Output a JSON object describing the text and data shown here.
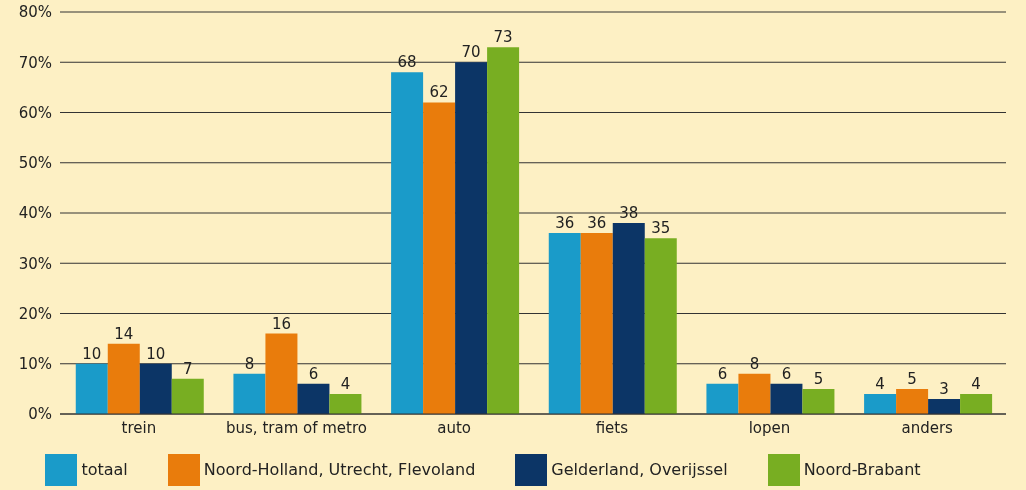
{
  "chart_data": {
    "type": "bar",
    "categories": [
      "trein",
      "bus, tram of metro",
      "auto",
      "fiets",
      "lopen",
      "anders"
    ],
    "series": [
      {
        "name": "totaal",
        "color": "#1a9bc9",
        "values": [
          10,
          8,
          68,
          36,
          6,
          4
        ]
      },
      {
        "name": "Noord-Holland, Utrecht, Flevoland",
        "color": "#e97c0c",
        "values": [
          14,
          16,
          62,
          36,
          8,
          5
        ]
      },
      {
        "name": "Gelderland, Overijssel",
        "color": "#0c3566",
        "values": [
          10,
          6,
          70,
          38,
          6,
          3
        ]
      },
      {
        "name": "Noord-Brabant",
        "color": "#78ae22",
        "values": [
          7,
          4,
          73,
          35,
          5,
          4
        ]
      }
    ],
    "ylim": [
      0,
      80
    ],
    "yticks": [
      {
        "value": 0,
        "label": "0%"
      },
      {
        "value": 10,
        "label": "10%"
      },
      {
        "value": 20,
        "label": "20%"
      },
      {
        "value": 30,
        "label": "30%"
      },
      {
        "value": 40,
        "label": "40%"
      },
      {
        "value": 50,
        "label": "50%"
      },
      {
        "value": 60,
        "label": "60%"
      },
      {
        "value": 70,
        "label": "70%"
      },
      {
        "value": 80,
        "label": "80%"
      }
    ],
    "grid": "y",
    "legend": "bottom",
    "data_labels": true
  }
}
